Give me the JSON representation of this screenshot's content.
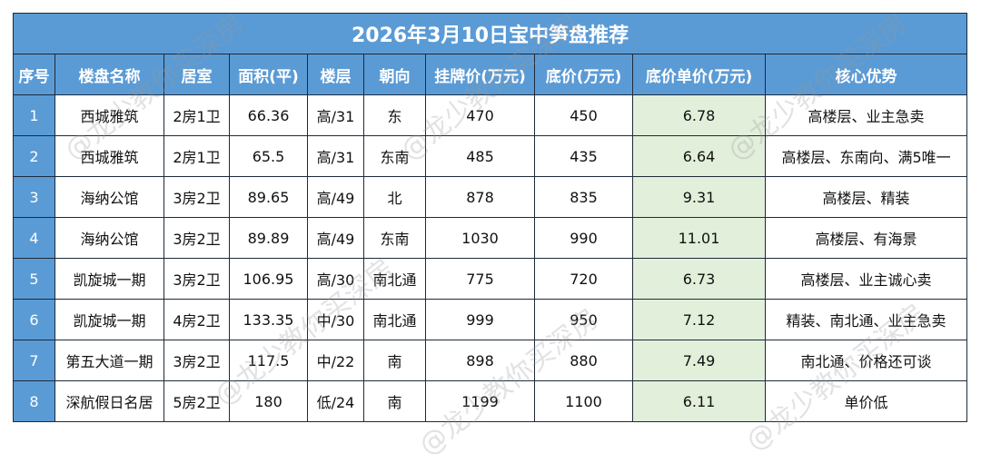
{
  "title": "2026年3月10日宝中笋盘推荐",
  "headers": [
    "序号",
    "楼盘名称",
    "居室",
    "面积(平)",
    "楼层",
    "朝向",
    "挂牌价(万元)",
    "底价(万元)",
    "底价单价(万元)",
    "核心优势"
  ],
  "rows": [
    {
      "no": "1",
      "name": "西城雅筑",
      "rooms": "2房1卫",
      "area": "66.36",
      "floor": "高/31",
      "facing": "东",
      "list_price": "470",
      "floor_price": "450",
      "unit_price": "6.78",
      "advantage": "高楼层、业主急卖"
    },
    {
      "no": "2",
      "name": "西城雅筑",
      "rooms": "2房1卫",
      "area": "65.5",
      "floor": "高/31",
      "facing": "东南",
      "list_price": "485",
      "floor_price": "435",
      "unit_price": "6.64",
      "advantage": "高楼层、东南向、满5唯一"
    },
    {
      "no": "3",
      "name": "海纳公馆",
      "rooms": "3房2卫",
      "area": "89.65",
      "floor": "高/49",
      "facing": "北",
      "list_price": "878",
      "floor_price": "835",
      "unit_price": "9.31",
      "advantage": "高楼层、精装"
    },
    {
      "no": "4",
      "name": "海纳公馆",
      "rooms": "3房2卫",
      "area": "89.89",
      "floor": "高/49",
      "facing": "东南",
      "list_price": "1030",
      "floor_price": "990",
      "unit_price": "11.01",
      "advantage": "高楼层、有海景"
    },
    {
      "no": "5",
      "name": "凯旋城一期",
      "rooms": "3房2卫",
      "area": "106.95",
      "floor": "高/30",
      "facing": "南北通",
      "list_price": "775",
      "floor_price": "720",
      "unit_price": "6.73",
      "advantage": "高楼层、业主诚心卖"
    },
    {
      "no": "6",
      "name": "凯旋城一期",
      "rooms": "4房2卫",
      "area": "133.35",
      "floor": "中/30",
      "facing": "南北通",
      "list_price": "999",
      "floor_price": "950",
      "unit_price": "7.12",
      "advantage": "精装、南北通、业主急卖"
    },
    {
      "no": "7",
      "name": "第五大道一期",
      "rooms": "3房2卫",
      "area": "117.5",
      "floor": "中/22",
      "facing": "南",
      "list_price": "898",
      "floor_price": "880",
      "unit_price": "7.49",
      "advantage": "南北通、价格还可谈"
    },
    {
      "no": "8",
      "name": "深航假日名居",
      "rooms": "5房2卫",
      "area": "180",
      "floor": "低/24",
      "facing": "南",
      "list_price": "1199",
      "floor_price": "1100",
      "unit_price": "6.11",
      "advantage": "单价低"
    }
  ],
  "watermark": "@龙少教你买深房",
  "colors": {
    "header_bg": "#5b9bd5",
    "unit_price_bg": "#e2efda",
    "border": "#1e2a3a"
  }
}
